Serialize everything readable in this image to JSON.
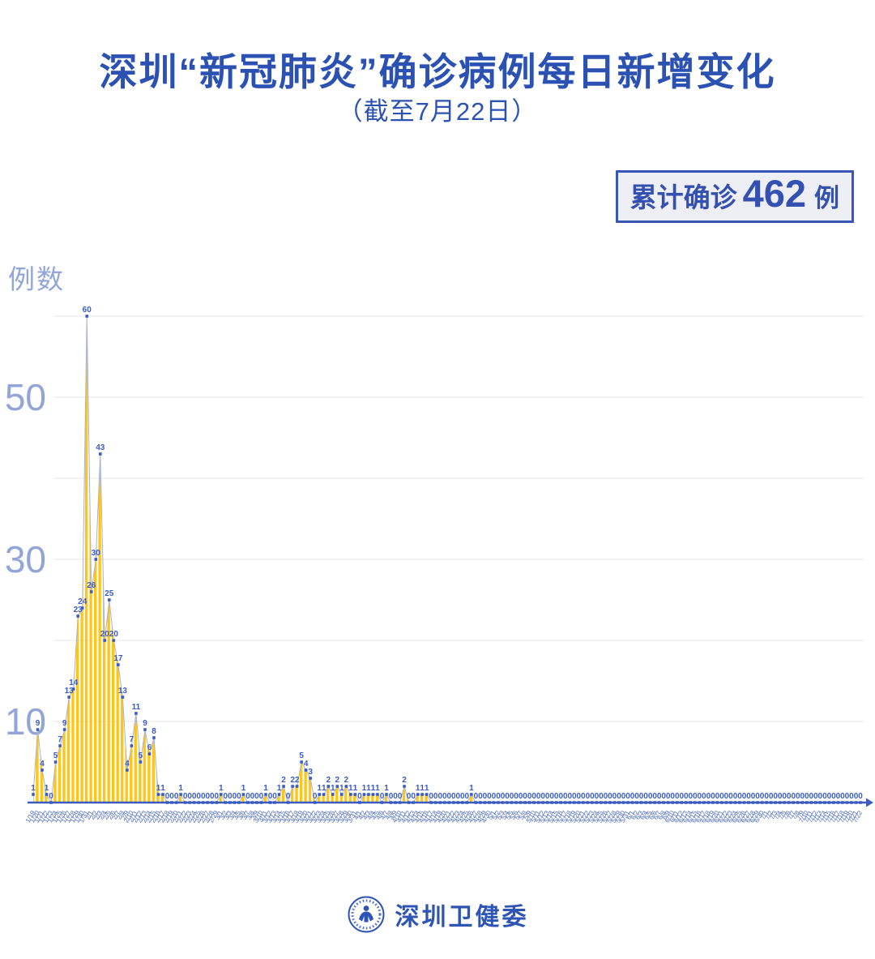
{
  "title": "深圳“新冠肺炎”确诊病例每日新增变化",
  "subtitle": "（截至7月22日）",
  "summary": {
    "label": "累计确诊",
    "value": "462",
    "unit": "例"
  },
  "y_axis_title": "例数",
  "footer": {
    "org_name": "深圳卫健委"
  },
  "colors": {
    "primary_blue": "#2b52b3",
    "badge_border_blue": "#3a56b5",
    "badge_bg": "#edeff4",
    "axis_tick_blue": "#92a5d8",
    "date_label_blue": "#4f6cc2",
    "point_blue": "#3a5cc0",
    "line_blue": "#a9b4d2",
    "area_yellow": "#ffc517",
    "gridline_gray": "#e7e7e7"
  },
  "chart_data": {
    "type": "area",
    "title": "深圳“新冠肺炎”确诊病例每日新增变化",
    "subtitle": "（截至7月22日）",
    "ylabel": "例数",
    "ylim": [
      0,
      62
    ],
    "y_ticks_labeled": [
      10,
      30,
      50
    ],
    "gridline_step": 10,
    "grid": true,
    "legend": false,
    "total_cases": 462,
    "x": [
      "1/19",
      "1/20",
      "1/21",
      "1/22",
      "1/23",
      "1/24",
      "1/25",
      "1/26",
      "1/27",
      "1/28",
      "1/29",
      "1/30",
      "1/31",
      "2/1",
      "2/2",
      "2/3",
      "2/4",
      "2/5",
      "2/6",
      "2/7",
      "2/8",
      "2/9",
      "2/10",
      "2/11",
      "2/12",
      "2/13",
      "2/14",
      "2/15",
      "2/16",
      "2/17",
      "2/18",
      "2/19",
      "2/20",
      "2/21",
      "2/22",
      "2/23",
      "2/24",
      "2/25",
      "2/26",
      "2/27",
      "2/28",
      "2/29",
      "3/1",
      "3/2",
      "3/3",
      "3/4",
      "3/5",
      "3/6",
      "3/7",
      "3/8",
      "3/9",
      "3/10",
      "3/11",
      "3/12",
      "3/13",
      "3/14",
      "3/15",
      "3/16",
      "3/17",
      "3/18",
      "3/19",
      "3/20",
      "3/21",
      "3/22",
      "3/23",
      "3/24",
      "3/25",
      "3/26",
      "3/27",
      "3/28",
      "3/29",
      "3/30",
      "3/31",
      "4/1",
      "4/2",
      "4/3",
      "4/4",
      "4/5",
      "4/6",
      "4/7",
      "4/8",
      "4/9",
      "4/10",
      "4/11",
      "4/12",
      "4/13",
      "4/14",
      "4/15",
      "4/16",
      "4/17",
      "4/18",
      "4/19",
      "4/20",
      "4/21",
      "4/22",
      "4/23",
      "4/24",
      "4/25",
      "4/26",
      "4/27",
      "4/28",
      "4/29",
      "4/30",
      "5/1",
      "5/2",
      "5/3",
      "5/4",
      "5/5",
      "5/6",
      "5/7",
      "5/8",
      "5/9",
      "5/10",
      "5/11",
      "5/12",
      "5/13",
      "5/14",
      "5/15",
      "5/16",
      "5/17",
      "5/18",
      "5/19",
      "5/20",
      "5/21",
      "5/22",
      "5/23",
      "5/24",
      "5/25",
      "5/26",
      "5/27",
      "5/28",
      "5/29",
      "5/30",
      "5/31",
      "6/1",
      "6/2",
      "6/3",
      "6/4",
      "6/5",
      "6/6",
      "6/7",
      "6/8",
      "6/9",
      "6/10",
      "6/11",
      "6/12",
      "6/13",
      "6/14",
      "6/15",
      "6/16",
      "6/17",
      "6/18",
      "6/19",
      "6/20",
      "6/21",
      "6/22",
      "6/23",
      "6/24",
      "6/25",
      "6/26",
      "6/27",
      "6/28",
      "6/29",
      "6/30",
      "7/1",
      "7/2",
      "7/3",
      "7/4",
      "7/5",
      "7/6",
      "7/7",
      "7/8",
      "7/9",
      "7/10",
      "7/11",
      "7/12",
      "7/13",
      "7/14",
      "7/15",
      "7/16",
      "7/17",
      "7/18",
      "7/19",
      "7/20",
      "7/21",
      "7/22"
    ],
    "values": [
      1,
      9,
      4,
      1,
      0,
      5,
      7,
      9,
      13,
      14,
      23,
      24,
      60,
      26,
      30,
      43,
      20,
      25,
      20,
      17,
      13,
      4,
      7,
      11,
      5,
      9,
      6,
      8,
      1,
      1,
      0,
      0,
      0,
      1,
      0,
      0,
      0,
      0,
      0,
      0,
      0,
      0,
      1,
      0,
      0,
      0,
      0,
      1,
      0,
      0,
      0,
      0,
      1,
      0,
      0,
      1,
      2,
      0,
      2,
      2,
      5,
      4,
      3,
      0,
      1,
      1,
      2,
      1,
      2,
      1,
      2,
      1,
      1,
      0,
      1,
      1,
      1,
      1,
      0,
      1,
      0,
      0,
      0,
      2,
      0,
      0,
      1,
      1,
      1,
      0,
      0,
      0,
      0,
      0,
      0,
      0,
      0,
      0,
      1,
      0,
      0,
      0,
      0,
      0,
      0,
      0,
      0,
      0,
      0,
      0,
      0,
      0,
      0,
      0,
      0,
      0,
      0,
      0,
      0,
      0,
      0,
      0,
      0,
      0,
      0,
      0,
      0,
      0,
      0,
      0,
      0,
      0,
      0,
      0,
      0,
      0,
      0,
      0,
      0,
      0,
      0,
      0,
      0,
      0,
      0,
      0,
      0,
      0,
      0,
      0,
      0,
      0,
      0,
      0,
      0,
      0,
      0,
      0,
      0,
      0,
      0,
      0,
      0,
      0,
      0,
      0,
      0,
      0,
      0,
      0,
      0,
      0,
      0,
      0,
      0,
      0,
      0,
      0,
      0,
      0,
      0,
      0,
      0,
      0,
      0,
      0
    ]
  }
}
